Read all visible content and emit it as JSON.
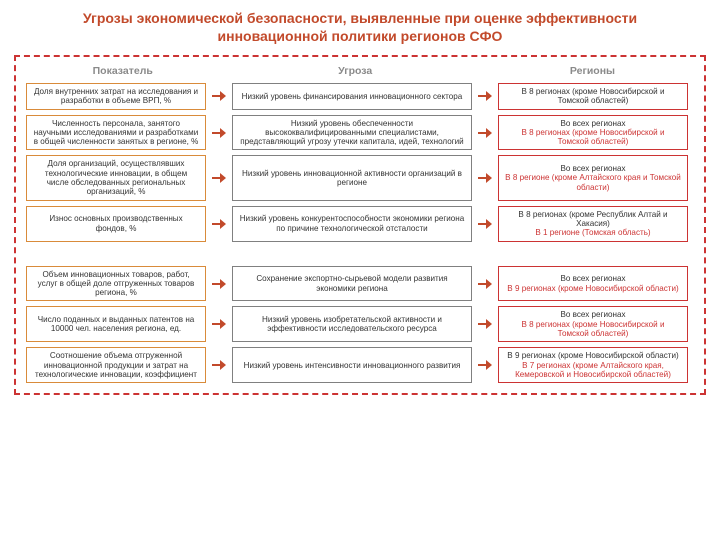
{
  "title": "Угрозы экономической безопасности, выявленные при оценке эффективности инновационной политики регионов СФО",
  "title_color": "#c24a2b",
  "title_fontsize": 14,
  "frame_border_color": "#cc3333",
  "header_fontsize": 10.5,
  "header_color": "#8a8a8a",
  "cell_fontsize": 8.1,
  "row_gap": 5,
  "group_gap": 14,
  "col_widths": {
    "indicator": 180,
    "threat": 240,
    "region": 190
  },
  "colors": {
    "indicator_border": "#d98b3a",
    "threat_border": "#808080",
    "region_border": "#cc3333",
    "arrow": "#c24a2b",
    "black_text": "#333333",
    "red_text": "#cc3333"
  },
  "columns": {
    "indicator": "Показатель",
    "threat": "Угроза",
    "region": "Регионы"
  },
  "rows": [
    {
      "indicator": "Доля внутренних затрат на исследования и разработки в объеме ВРП, %",
      "threat": "Низкий уровень финансирования инновационного сектора",
      "region_lines": [
        {
          "text": "В 8 регионах (кроме Новосибирской и Томской областей)",
          "style": "black"
        }
      ]
    },
    {
      "indicator": "Численность персонала, занятого научными исследованиями и разработками в общей численности занятых в регионе, %",
      "threat": "Низкий уровень обеспеченности высококвалифицированными специалистами, представляющий угрозу утечки капитала, идей, технологий",
      "region_lines": [
        {
          "text": "Во всех регионах",
          "style": "black"
        },
        {
          "text": "В 8 регионах (кроме Новосибирской и Томской областей)",
          "style": "red"
        }
      ]
    },
    {
      "indicator": "Доля организаций, осуществлявших технологические инновации, в общем числе обследованных региональных организаций, %",
      "threat": "Низкий уровень инновационной активности организаций в регионе",
      "region_lines": [
        {
          "text": "Во всех регионах",
          "style": "black"
        },
        {
          "text": "В 8 регионе (кроме Алтайского края и Томской области)",
          "style": "red"
        }
      ]
    },
    {
      "indicator": "Износ основных производственных фондов, %",
      "threat": "Низкий уровень конкурентоспособности экономики региона по причине технологической отсталости",
      "region_lines": [
        {
          "text": "В 8 регионах (кроме Республик Алтай и Хакасия)",
          "style": "black"
        },
        {
          "text": "В 1 регионе (Томская область)",
          "style": "red"
        }
      ]
    },
    {
      "indicator": "Объем инновационных товаров, работ, услуг в общей доле отгруженных товаров региона, %",
      "threat": "Сохранение экспортно-сырьевой модели развития экономики региона",
      "region_lines": [
        {
          "text": "Во всех регионах",
          "style": "black"
        },
        {
          "text": "В 9 регионах (кроме Новосибирской области)",
          "style": "red"
        }
      ]
    },
    {
      "indicator": "Число поданных и выданных патентов на 10000 чел. населения региона, ед.",
      "threat": "Низкий уровень изобретательской активности и эффективности исследовательского ресурса",
      "region_lines": [
        {
          "text": "Во всех регионах",
          "style": "black"
        },
        {
          "text": "В 8 регионах (кроме Новосибирской и Томской областей)",
          "style": "red"
        }
      ]
    },
    {
      "indicator": "Соотношение объема отгруженной инновационной продукции и затрат на технологические инновации, коэффициент",
      "threat": "Низкий уровень интенсивности инновационного развития",
      "region_lines": [
        {
          "text": "В 9 регионах (кроме Новосибирской области)",
          "style": "black"
        },
        {
          "text": "В 7 регионах (кроме Алтайского края, Кемеровской и Новосибирской областей)",
          "style": "red"
        }
      ]
    }
  ],
  "group_break_after_index": 3
}
